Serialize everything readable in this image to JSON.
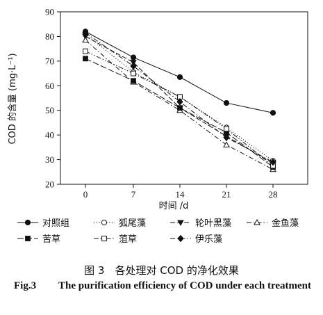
{
  "chart_data": {
    "type": "line",
    "x": [
      0,
      7,
      14,
      21,
      28
    ],
    "xlabel": "时间 /d",
    "ylabel": "COD 的含量 (mg·L⁻¹)",
    "ylim": [
      20,
      90
    ],
    "yticks": [
      20,
      30,
      40,
      50,
      60,
      70,
      80,
      90
    ],
    "grid": false,
    "legend_position": "bottom",
    "series": [
      {
        "name": "对照组",
        "marker": "circle-filled",
        "dash": "solid",
        "values": [
          82,
          71.5,
          63.5,
          53,
          49
        ]
      },
      {
        "name": "狐尾藻",
        "marker": "circle-open",
        "dash": "dot",
        "values": [
          81,
          65.5,
          55.5,
          43,
          29.5
        ]
      },
      {
        "name": "轮叶黑藻",
        "marker": "triangle-down-filled",
        "dash": "dash",
        "values": [
          80,
          69.5,
          51,
          39.5,
          28.5
        ]
      },
      {
        "name": "金鱼藻",
        "marker": "triangle-up-open",
        "dash": "dashdot",
        "values": [
          78.5,
          61.5,
          50,
          36,
          26
        ]
      },
      {
        "name": "苦草",
        "marker": "square-filled",
        "dash": "longdash",
        "values": [
          71,
          62,
          51,
          41,
          27
        ]
      },
      {
        "name": "菹草",
        "marker": "square-open",
        "dash": "dashdotdot",
        "values": [
          74,
          65,
          55.5,
          42.5,
          27.5
        ]
      },
      {
        "name": "伊乐藻",
        "marker": "diamond-filled",
        "dash": "dashdot",
        "values": [
          81.5,
          68,
          53.5,
          39,
          29
        ]
      }
    ]
  },
  "caption": {
    "zh": "图 3　各处理对 COD 的净化效果",
    "en_label": "Fig.3",
    "en_text": "The purification efficiency of COD under each treatment"
  }
}
